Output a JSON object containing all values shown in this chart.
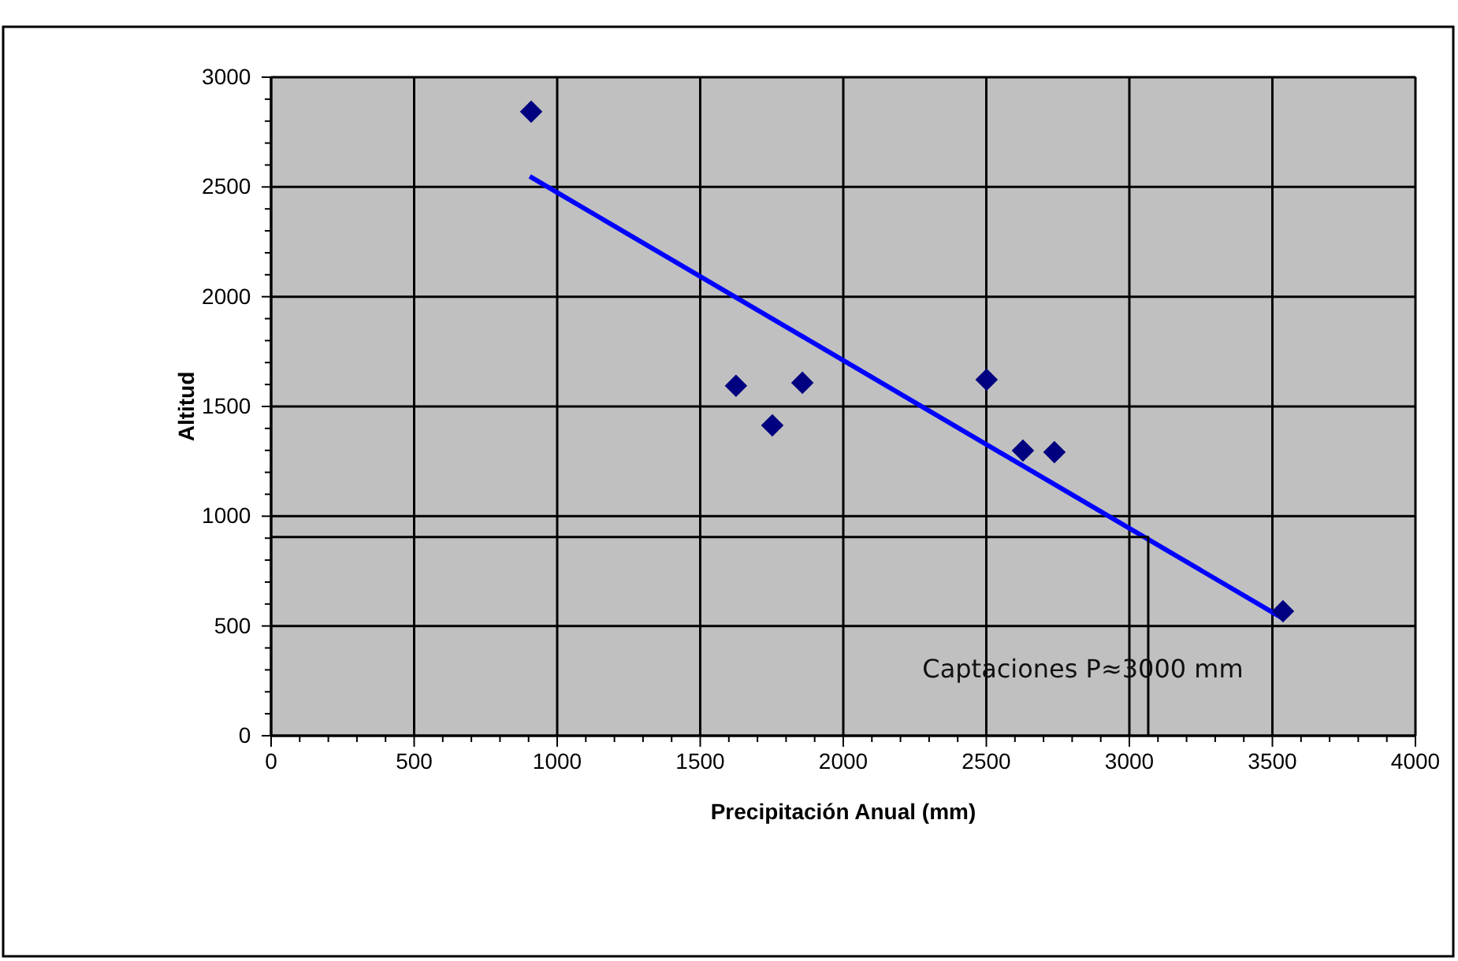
{
  "chart_data": {
    "type": "scatter",
    "xlabel": "Precipitación Anual (mm)",
    "ylabel": "Altitud",
    "grid": true,
    "xlim": [
      0,
      4000
    ],
    "ylim": [
      0,
      3000
    ],
    "xticks": [
      0,
      {
        "value": 100,
        "label": null
      },
      {
        "value": 200,
        "label": null
      },
      {
        "value": 300,
        "label": null
      },
      {
        "value": 400,
        "label": null
      },
      500,
      {
        "value": 600,
        "label": null
      },
      {
        "value": 700,
        "label": null
      },
      {
        "value": 800,
        "label": null
      },
      {
        "value": 900,
        "label": null
      },
      1000,
      {
        "value": 1100,
        "label": null
      },
      {
        "value": 1200,
        "label": null
      },
      {
        "value": 1300,
        "label": null
      },
      {
        "value": 1400,
        "label": null
      },
      1500,
      {
        "value": 1600,
        "label": null
      },
      {
        "value": 1700,
        "label": null
      },
      {
        "value": 1800,
        "label": null
      },
      {
        "value": 1900,
        "label": null
      },
      2000,
      {
        "value": 2100,
        "label": null
      },
      {
        "value": 2200,
        "label": null
      },
      {
        "value": 2300,
        "label": null
      },
      {
        "value": 2400,
        "label": null
      },
      2500,
      {
        "value": 2600,
        "label": null
      },
      {
        "value": 2700,
        "label": null
      },
      {
        "value": 2800,
        "label": null
      },
      {
        "value": 2900,
        "label": null
      },
      3000,
      {
        "value": 3100,
        "label": null
      },
      {
        "value": 3200,
        "label": null
      },
      {
        "value": 3300,
        "label": null
      },
      {
        "value": 3400,
        "label": null
      },
      3500,
      {
        "value": 3600,
        "label": null
      },
      {
        "value": 3700,
        "label": null
      },
      {
        "value": 3800,
        "label": null
      },
      {
        "value": 3900,
        "label": null
      },
      4000
    ],
    "yticks": [
      0,
      {
        "value": 100,
        "label": null
      },
      {
        "value": 200,
        "label": null
      },
      {
        "value": 300,
        "label": null
      },
      {
        "value": 400,
        "label": null
      },
      500,
      {
        "value": 600,
        "label": null
      },
      {
        "value": 700,
        "label": null
      },
      {
        "value": 800,
        "label": null
      },
      {
        "value": 900,
        "label": null
      },
      1000,
      {
        "value": 1100,
        "label": null
      },
      {
        "value": 1200,
        "label": null
      },
      {
        "value": 1300,
        "label": null
      },
      {
        "value": 1400,
        "label": null
      },
      1500,
      {
        "value": 1600,
        "label": null
      },
      {
        "value": 1700,
        "label": null
      },
      {
        "value": 1800,
        "label": null
      },
      {
        "value": 1900,
        "label": null
      },
      2000,
      {
        "value": 2100,
        "label": null
      },
      {
        "value": 2200,
        "label": null
      },
      {
        "value": 2300,
        "label": null
      },
      {
        "value": 2400,
        "label": null
      },
      2500,
      {
        "value": 2600,
        "label": null
      },
      {
        "value": 2700,
        "label": null
      },
      {
        "value": 2800,
        "label": null
      },
      {
        "value": 2900,
        "label": null
      },
      3000
    ],
    "series": [
      {
        "marker": "diamond",
        "color": "#000080",
        "x": [
          909,
          1625,
          1752,
          1857,
          2501,
          2628,
          2738,
          3537
        ],
        "values": [
          2843,
          1594,
          1414,
          1608,
          1622,
          1299,
          1292,
          567
        ]
      },
      {
        "type": "line",
        "color": "#0000ff",
        "x": [
          904,
          3532
        ],
        "values": [
          2548,
          538
        ]
      },
      {
        "type": "line",
        "color": "#000000",
        "x": [
          0,
          3066,
          3066
        ],
        "values": [
          905,
          905,
          0
        ]
      }
    ],
    "annotations": [
      "Captaciones P≈3000 mm"
    ]
  }
}
